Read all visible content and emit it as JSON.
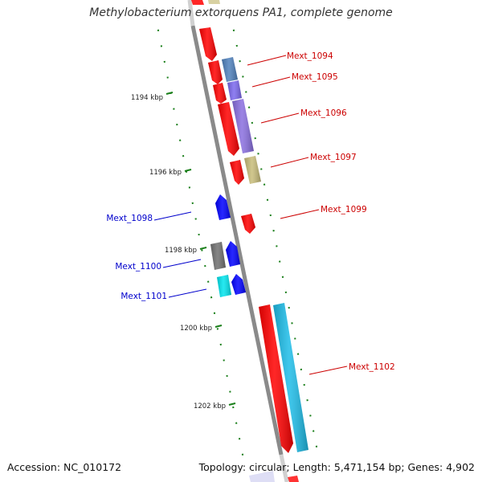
{
  "title": "Methylobacterium extorquens PA1, complete genome",
  "footer": {
    "accession": "Accession: NC_010172",
    "topology": "Topology: circular; Length: 5,471,154 bp; Genes: 4,902"
  },
  "colors": {
    "backbone": "#8a8a8a",
    "tick": "#1a7f1a",
    "label_forward": "#cc0000",
    "label_reverse": "#0000cc"
  },
  "scale_labels": [
    "1194 kbp",
    "1196 kbp",
    "1198 kbp",
    "1200 kbp",
    "1202 kbp"
  ],
  "gene_labels": [
    {
      "text": "Mext_1094",
      "strand": "forward"
    },
    {
      "text": "Mext_1095",
      "strand": "forward"
    },
    {
      "text": "Mext_1096",
      "strand": "forward"
    },
    {
      "text": "Mext_1097",
      "strand": "forward"
    },
    {
      "text": "Mext_1099",
      "strand": "forward"
    },
    {
      "text": "Mext_1098",
      "strand": "reverse"
    },
    {
      "text": "Mext_1100",
      "strand": "reverse"
    },
    {
      "text": "Mext_1101",
      "strand": "reverse"
    },
    {
      "text": "Mext_1102",
      "strand": "forward"
    }
  ],
  "features": [
    {
      "name": "cds-feature",
      "color": "#ff0000"
    },
    {
      "name": "gene-mext-1094",
      "color": "#4f81bd"
    },
    {
      "name": "gene-mext-1095",
      "color": "#7b68ee"
    },
    {
      "name": "gene-mext-1096",
      "color": "#8a6fe0"
    },
    {
      "name": "gene-mext-1097",
      "color": "#c8bd7a"
    },
    {
      "name": "gene-mext-1098",
      "color": "#0000ff"
    },
    {
      "name": "gene-mext-1100",
      "color": "#707070"
    },
    {
      "name": "gene-mext-1101",
      "color": "#00e5ee"
    },
    {
      "name": "gene-mext-1102",
      "color": "#1ebde8"
    }
  ]
}
